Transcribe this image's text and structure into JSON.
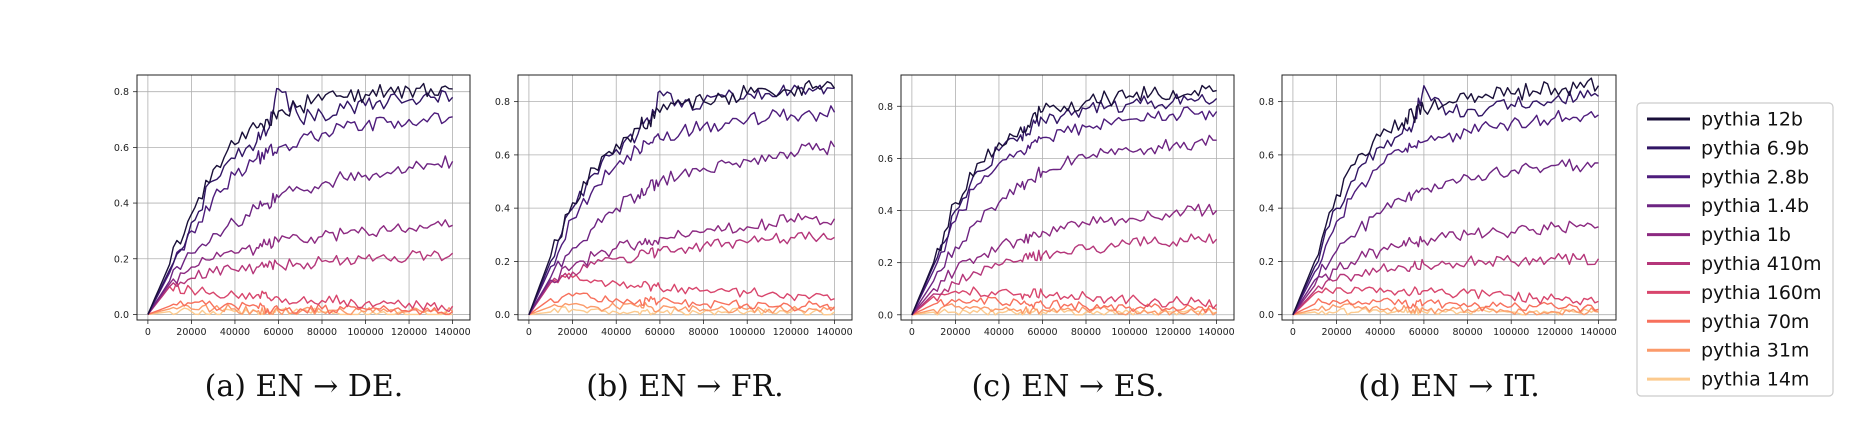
{
  "figure": {
    "legend_title": "",
    "series": [
      {
        "name": "pythia 12b",
        "color": "#190f39"
      },
      {
        "name": "pythia 6.9b",
        "color": "#311565"
      },
      {
        "name": "pythia 2.8b",
        "color": "#4e1c7c"
      },
      {
        "name": "pythia 1.4b",
        "color": "#6d2482"
      },
      {
        "name": "pythia 1b",
        "color": "#8c2981"
      },
      {
        "name": "pythia 410m",
        "color": "#b5367a"
      },
      {
        "name": "pythia 160m",
        "color": "#d8456c"
      },
      {
        "name": "pythia 70m",
        "color": "#f7705c"
      },
      {
        "name": "pythia 31m",
        "color": "#fb9a6a"
      },
      {
        "name": "pythia 14m",
        "color": "#fcca8e"
      }
    ]
  },
  "chart_data": [
    {
      "type": "line",
      "caption": "(a) EN → DE.",
      "x": [
        0,
        10000,
        20000,
        30000,
        40000,
        50000,
        55000,
        60000,
        70000,
        80000,
        90000,
        100000,
        110000,
        120000,
        130000,
        140000
      ],
      "xlim": [
        -5000,
        148000
      ],
      "ylim": [
        -0.02,
        0.86
      ],
      "xticks": [
        "0",
        "20000",
        "40000",
        "60000",
        "80000",
        "100000",
        "120000",
        "140000"
      ],
      "yticks": [
        "0.0",
        "0.2",
        "0.4",
        "0.6",
        "0.8"
      ],
      "series": [
        {
          "name": "pythia 12b",
          "values": [
            0.0,
            0.18,
            0.36,
            0.52,
            0.61,
            0.67,
            0.7,
            0.73,
            0.75,
            0.77,
            0.78,
            0.79,
            0.8,
            0.81,
            0.81,
            0.81
          ]
        },
        {
          "name": "pythia 6.9b",
          "values": [
            0.0,
            0.16,
            0.33,
            0.48,
            0.56,
            0.62,
            0.66,
            0.81,
            0.7,
            0.72,
            0.74,
            0.75,
            0.76,
            0.77,
            0.78,
            0.78
          ]
        },
        {
          "name": "pythia 2.8b",
          "values": [
            0.0,
            0.15,
            0.3,
            0.42,
            0.5,
            0.56,
            0.58,
            0.6,
            0.63,
            0.65,
            0.67,
            0.68,
            0.69,
            0.7,
            0.71,
            0.71
          ]
        },
        {
          "name": "pythia 1.4b",
          "values": [
            0.0,
            0.12,
            0.22,
            0.29,
            0.33,
            0.38,
            0.4,
            0.42,
            0.45,
            0.47,
            0.49,
            0.5,
            0.51,
            0.53,
            0.54,
            0.55
          ]
        },
        {
          "name": "pythia 1b",
          "values": [
            0.0,
            0.11,
            0.17,
            0.2,
            0.22,
            0.24,
            0.25,
            0.26,
            0.27,
            0.28,
            0.29,
            0.3,
            0.3,
            0.31,
            0.32,
            0.32
          ]
        },
        {
          "name": "pythia 410m",
          "values": [
            0.0,
            0.1,
            0.13,
            0.15,
            0.16,
            0.17,
            0.17,
            0.18,
            0.18,
            0.19,
            0.19,
            0.2,
            0.2,
            0.21,
            0.21,
            0.22
          ]
        },
        {
          "name": "pythia 160m",
          "values": [
            0.0,
            0.1,
            0.09,
            0.08,
            0.07,
            0.07,
            0.06,
            0.06,
            0.05,
            0.05,
            0.05,
            0.04,
            0.04,
            0.04,
            0.03,
            0.03
          ]
        },
        {
          "name": "pythia 70m",
          "values": [
            0.0,
            0.03,
            0.04,
            0.03,
            0.03,
            0.03,
            0.02,
            0.02,
            0.02,
            0.02,
            0.02,
            0.02,
            0.02,
            0.01,
            0.01,
            0.01
          ]
        },
        {
          "name": "pythia 31m",
          "values": [
            0.0,
            0.02,
            0.02,
            0.02,
            0.02,
            0.01,
            0.01,
            0.01,
            0.01,
            0.01,
            0.01,
            0.01,
            0.01,
            0.01,
            0.01,
            0.01
          ]
        },
        {
          "name": "pythia 14m",
          "values": [
            0.0,
            0.01,
            0.01,
            0.01,
            0.01,
            0.01,
            0.01,
            0.01,
            0.01,
            0.01,
            0.0,
            0.0,
            0.0,
            0.0,
            0.0,
            0.0
          ]
        }
      ]
    },
    {
      "type": "line",
      "caption": "(b) EN → FR.",
      "x": [
        0,
        10000,
        20000,
        30000,
        40000,
        50000,
        55000,
        60000,
        70000,
        80000,
        90000,
        100000,
        110000,
        120000,
        130000,
        140000
      ],
      "xlim": [
        -5000,
        148000
      ],
      "ylim": [
        -0.02,
        0.9
      ],
      "xticks": [
        "0",
        "20000",
        "40000",
        "60000",
        "80000",
        "100000",
        "120000",
        "140000"
      ],
      "yticks": [
        "0.0",
        "0.2",
        "0.4",
        "0.6",
        "0.8"
      ],
      "series": [
        {
          "name": "pythia 12b",
          "values": [
            0.0,
            0.22,
            0.42,
            0.55,
            0.64,
            0.7,
            0.73,
            0.76,
            0.79,
            0.8,
            0.82,
            0.83,
            0.84,
            0.84,
            0.85,
            0.85
          ]
        },
        {
          "name": "pythia 6.9b",
          "values": [
            0.0,
            0.2,
            0.4,
            0.53,
            0.62,
            0.68,
            0.72,
            0.84,
            0.78,
            0.8,
            0.82,
            0.83,
            0.83,
            0.84,
            0.84,
            0.85
          ]
        },
        {
          "name": "pythia 2.8b",
          "values": [
            0.0,
            0.18,
            0.36,
            0.48,
            0.56,
            0.62,
            0.64,
            0.66,
            0.69,
            0.71,
            0.72,
            0.73,
            0.74,
            0.75,
            0.75,
            0.76
          ]
        },
        {
          "name": "pythia 1.4b",
          "values": [
            0.0,
            0.14,
            0.25,
            0.33,
            0.4,
            0.45,
            0.48,
            0.5,
            0.53,
            0.55,
            0.57,
            0.58,
            0.6,
            0.61,
            0.62,
            0.63
          ]
        },
        {
          "name": "pythia 1b",
          "values": [
            0.0,
            0.13,
            0.18,
            0.22,
            0.25,
            0.27,
            0.28,
            0.29,
            0.3,
            0.31,
            0.32,
            0.33,
            0.34,
            0.36,
            0.36,
            0.36
          ]
        },
        {
          "name": "pythia 410m",
          "values": [
            0.0,
            0.12,
            0.16,
            0.19,
            0.21,
            0.22,
            0.23,
            0.24,
            0.25,
            0.26,
            0.27,
            0.27,
            0.28,
            0.29,
            0.29,
            0.29
          ]
        },
        {
          "name": "pythia 160m",
          "values": [
            0.0,
            0.12,
            0.14,
            0.13,
            0.12,
            0.11,
            0.11,
            0.1,
            0.1,
            0.09,
            0.09,
            0.08,
            0.08,
            0.07,
            0.07,
            0.06
          ]
        },
        {
          "name": "pythia 70m",
          "values": [
            0.0,
            0.06,
            0.07,
            0.06,
            0.06,
            0.05,
            0.05,
            0.05,
            0.04,
            0.04,
            0.04,
            0.04,
            0.03,
            0.03,
            0.04,
            0.03
          ]
        },
        {
          "name": "pythia 31m",
          "values": [
            0.0,
            0.03,
            0.04,
            0.03,
            0.03,
            0.03,
            0.03,
            0.02,
            0.02,
            0.02,
            0.02,
            0.02,
            0.02,
            0.02,
            0.02,
            0.02
          ]
        },
        {
          "name": "pythia 14m",
          "values": [
            0.0,
            0.01,
            0.02,
            0.02,
            0.01,
            0.01,
            0.01,
            0.01,
            0.01,
            0.01,
            0.01,
            0.01,
            0.01,
            0.01,
            0.01,
            0.01
          ]
        }
      ]
    },
    {
      "type": "line",
      "caption": "(c) EN → ES.",
      "x": [
        0,
        10000,
        20000,
        30000,
        40000,
        50000,
        55000,
        60000,
        70000,
        80000,
        90000,
        100000,
        110000,
        120000,
        130000,
        140000
      ],
      "xlim": [
        -5000,
        148000
      ],
      "ylim": [
        -0.02,
        0.92
      ],
      "xticks": [
        "0",
        "20000",
        "40000",
        "60000",
        "80000",
        "100000",
        "120000",
        "140000"
      ],
      "yticks": [
        "0.0",
        "0.2",
        "0.4",
        "0.6",
        "0.8"
      ],
      "series": [
        {
          "name": "pythia 12b",
          "values": [
            0.0,
            0.2,
            0.43,
            0.58,
            0.66,
            0.72,
            0.75,
            0.78,
            0.8,
            0.82,
            0.83,
            0.84,
            0.85,
            0.86,
            0.86,
            0.86
          ]
        },
        {
          "name": "pythia 6.9b",
          "values": [
            0.0,
            0.19,
            0.4,
            0.55,
            0.63,
            0.69,
            0.72,
            0.75,
            0.77,
            0.79,
            0.8,
            0.81,
            0.82,
            0.82,
            0.82,
            0.83
          ]
        },
        {
          "name": "pythia 2.8b",
          "values": [
            0.0,
            0.17,
            0.36,
            0.5,
            0.58,
            0.63,
            0.66,
            0.68,
            0.7,
            0.72,
            0.74,
            0.75,
            0.76,
            0.77,
            0.77,
            0.78
          ]
        },
        {
          "name": "pythia 1.4b",
          "values": [
            0.0,
            0.13,
            0.26,
            0.36,
            0.43,
            0.49,
            0.52,
            0.55,
            0.58,
            0.6,
            0.62,
            0.63,
            0.64,
            0.65,
            0.66,
            0.67
          ]
        },
        {
          "name": "pythia 1b",
          "values": [
            0.0,
            0.1,
            0.17,
            0.22,
            0.26,
            0.29,
            0.3,
            0.32,
            0.33,
            0.35,
            0.36,
            0.37,
            0.38,
            0.39,
            0.4,
            0.4
          ]
        },
        {
          "name": "pythia 410m",
          "values": [
            0.0,
            0.08,
            0.12,
            0.16,
            0.19,
            0.21,
            0.22,
            0.23,
            0.24,
            0.25,
            0.26,
            0.27,
            0.28,
            0.28,
            0.29,
            0.29
          ]
        },
        {
          "name": "pythia 160m",
          "values": [
            0.0,
            0.07,
            0.09,
            0.09,
            0.09,
            0.08,
            0.08,
            0.08,
            0.07,
            0.07,
            0.06,
            0.06,
            0.05,
            0.05,
            0.05,
            0.04
          ]
        },
        {
          "name": "pythia 70m",
          "values": [
            0.0,
            0.04,
            0.05,
            0.05,
            0.05,
            0.04,
            0.04,
            0.04,
            0.04,
            0.03,
            0.03,
            0.03,
            0.03,
            0.03,
            0.02,
            0.02
          ]
        },
        {
          "name": "pythia 31m",
          "values": [
            0.0,
            0.02,
            0.03,
            0.03,
            0.02,
            0.02,
            0.02,
            0.02,
            0.02,
            0.02,
            0.02,
            0.01,
            0.01,
            0.01,
            0.01,
            0.01
          ]
        },
        {
          "name": "pythia 14m",
          "values": [
            0.0,
            0.01,
            0.01,
            0.01,
            0.01,
            0.01,
            0.01,
            0.01,
            0.01,
            0.01,
            0.01,
            0.01,
            0.01,
            0.01,
            0.01,
            0.01
          ]
        }
      ]
    },
    {
      "type": "line",
      "caption": "(d) EN → IT.",
      "x": [
        0,
        10000,
        20000,
        30000,
        40000,
        50000,
        55000,
        60000,
        70000,
        80000,
        90000,
        100000,
        110000,
        120000,
        130000,
        140000
      ],
      "xlim": [
        -5000,
        148000
      ],
      "ylim": [
        -0.02,
        0.9
      ],
      "xticks": [
        "0",
        "20000",
        "40000",
        "60000",
        "80000",
        "100000",
        "120000",
        "140000"
      ],
      "yticks": [
        "0.0",
        "0.2",
        "0.4",
        "0.6",
        "0.8"
      ],
      "series": [
        {
          "name": "pythia 12b",
          "values": [
            0.0,
            0.2,
            0.45,
            0.6,
            0.67,
            0.72,
            0.75,
            0.77,
            0.79,
            0.81,
            0.82,
            0.83,
            0.84,
            0.85,
            0.85,
            0.86
          ]
        },
        {
          "name": "pythia 6.9b",
          "values": [
            0.0,
            0.18,
            0.4,
            0.55,
            0.63,
            0.68,
            0.71,
            0.86,
            0.75,
            0.77,
            0.78,
            0.79,
            0.8,
            0.81,
            0.81,
            0.82
          ]
        },
        {
          "name": "pythia 2.8b",
          "values": [
            0.0,
            0.16,
            0.35,
            0.48,
            0.56,
            0.61,
            0.63,
            0.65,
            0.67,
            0.69,
            0.71,
            0.72,
            0.73,
            0.74,
            0.74,
            0.75
          ]
        },
        {
          "name": "pythia 1.4b",
          "values": [
            0.0,
            0.13,
            0.24,
            0.32,
            0.38,
            0.43,
            0.45,
            0.47,
            0.5,
            0.52,
            0.53,
            0.54,
            0.55,
            0.56,
            0.56,
            0.57
          ]
        },
        {
          "name": "pythia 1b",
          "values": [
            0.0,
            0.11,
            0.17,
            0.21,
            0.24,
            0.26,
            0.27,
            0.28,
            0.29,
            0.3,
            0.31,
            0.31,
            0.32,
            0.33,
            0.33,
            0.33
          ]
        },
        {
          "name": "pythia 410m",
          "values": [
            0.0,
            0.09,
            0.13,
            0.15,
            0.17,
            0.18,
            0.18,
            0.19,
            0.19,
            0.2,
            0.2,
            0.2,
            0.21,
            0.21,
            0.21,
            0.21
          ]
        },
        {
          "name": "pythia 160m",
          "values": [
            0.0,
            0.08,
            0.1,
            0.1,
            0.1,
            0.09,
            0.09,
            0.09,
            0.08,
            0.08,
            0.07,
            0.07,
            0.06,
            0.06,
            0.05,
            0.05
          ]
        },
        {
          "name": "pythia 70m",
          "values": [
            0.0,
            0.04,
            0.05,
            0.05,
            0.05,
            0.04,
            0.04,
            0.04,
            0.04,
            0.03,
            0.03,
            0.03,
            0.03,
            0.03,
            0.03,
            0.02
          ]
        },
        {
          "name": "pythia 31m",
          "values": [
            0.0,
            0.02,
            0.03,
            0.03,
            0.02,
            0.02,
            0.02,
            0.02,
            0.02,
            0.02,
            0.02,
            0.01,
            0.01,
            0.01,
            0.01,
            0.01
          ]
        },
        {
          "name": "pythia 14m",
          "values": [
            0.0,
            0.01,
            0.01,
            0.01,
            0.01,
            0.01,
            0.01,
            0.01,
            0.01,
            0.01,
            0.01,
            0.01,
            0.01,
            0.01,
            0.01,
            0.01
          ]
        }
      ]
    }
  ]
}
